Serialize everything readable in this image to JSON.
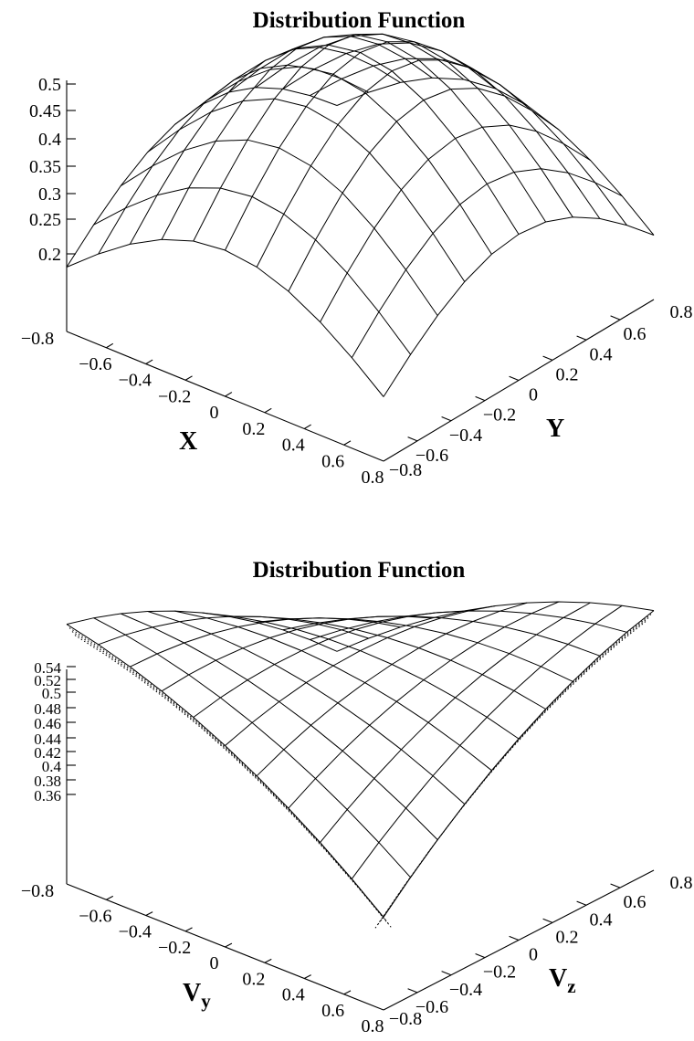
{
  "chart_data": [
    {
      "type": "surface",
      "title": "Distribution Function",
      "xlabel": "X",
      "ylabel": "Y",
      "xlim": [
        -0.8,
        0.8
      ],
      "ylim": [
        -0.8,
        0.8
      ],
      "zlim": [
        0.2,
        0.5
      ],
      "x_ticks": [
        "−0.8",
        "−0.6",
        "−0.4",
        "−0.2",
        "0",
        "0.2",
        "0.4",
        "0.6",
        "0.8"
      ],
      "y_ticks": [
        "−0.8",
        "−0.6",
        "−0.4",
        "−0.2",
        "0",
        "0.2",
        "0.4",
        "0.6",
        "0.8"
      ],
      "z_ticks": [
        "0.2",
        "0.25",
        "0.3",
        "0.35",
        "0.4",
        "0.45",
        "0.5"
      ],
      "grid_n": 11,
      "surface": "single peak at center, z ≈ 0.5 at (0,0), falling to ≈ 0.24 at the corners"
    },
    {
      "type": "surface",
      "title": "Distribution Function",
      "xlabel": "Vy",
      "ylabel": "Vz",
      "xlim": [
        -0.8,
        0.8
      ],
      "ylim": [
        -0.8,
        0.8
      ],
      "zlim": [
        0.36,
        0.54
      ],
      "x_ticks": [
        "−0.8",
        "−0.6",
        "−0.4",
        "−0.2",
        "0",
        "0.2",
        "0.4",
        "0.6",
        "0.8"
      ],
      "y_ticks": [
        "−0.8",
        "−0.6",
        "−0.4",
        "−0.2",
        "0",
        "0.2",
        "0.4",
        "0.6",
        "0.8"
      ],
      "z_ticks": [
        "0.36",
        "0.38",
        "0.4",
        "0.42",
        "0.44",
        "0.46",
        "0.48",
        "0.5",
        "0.52",
        "0.54"
      ],
      "grid_n": 11,
      "surface": "saddle-like: high (≈0.54) along the Vy=Vz diagonal corners, low (≈0.36) at the other two corners"
    }
  ]
}
